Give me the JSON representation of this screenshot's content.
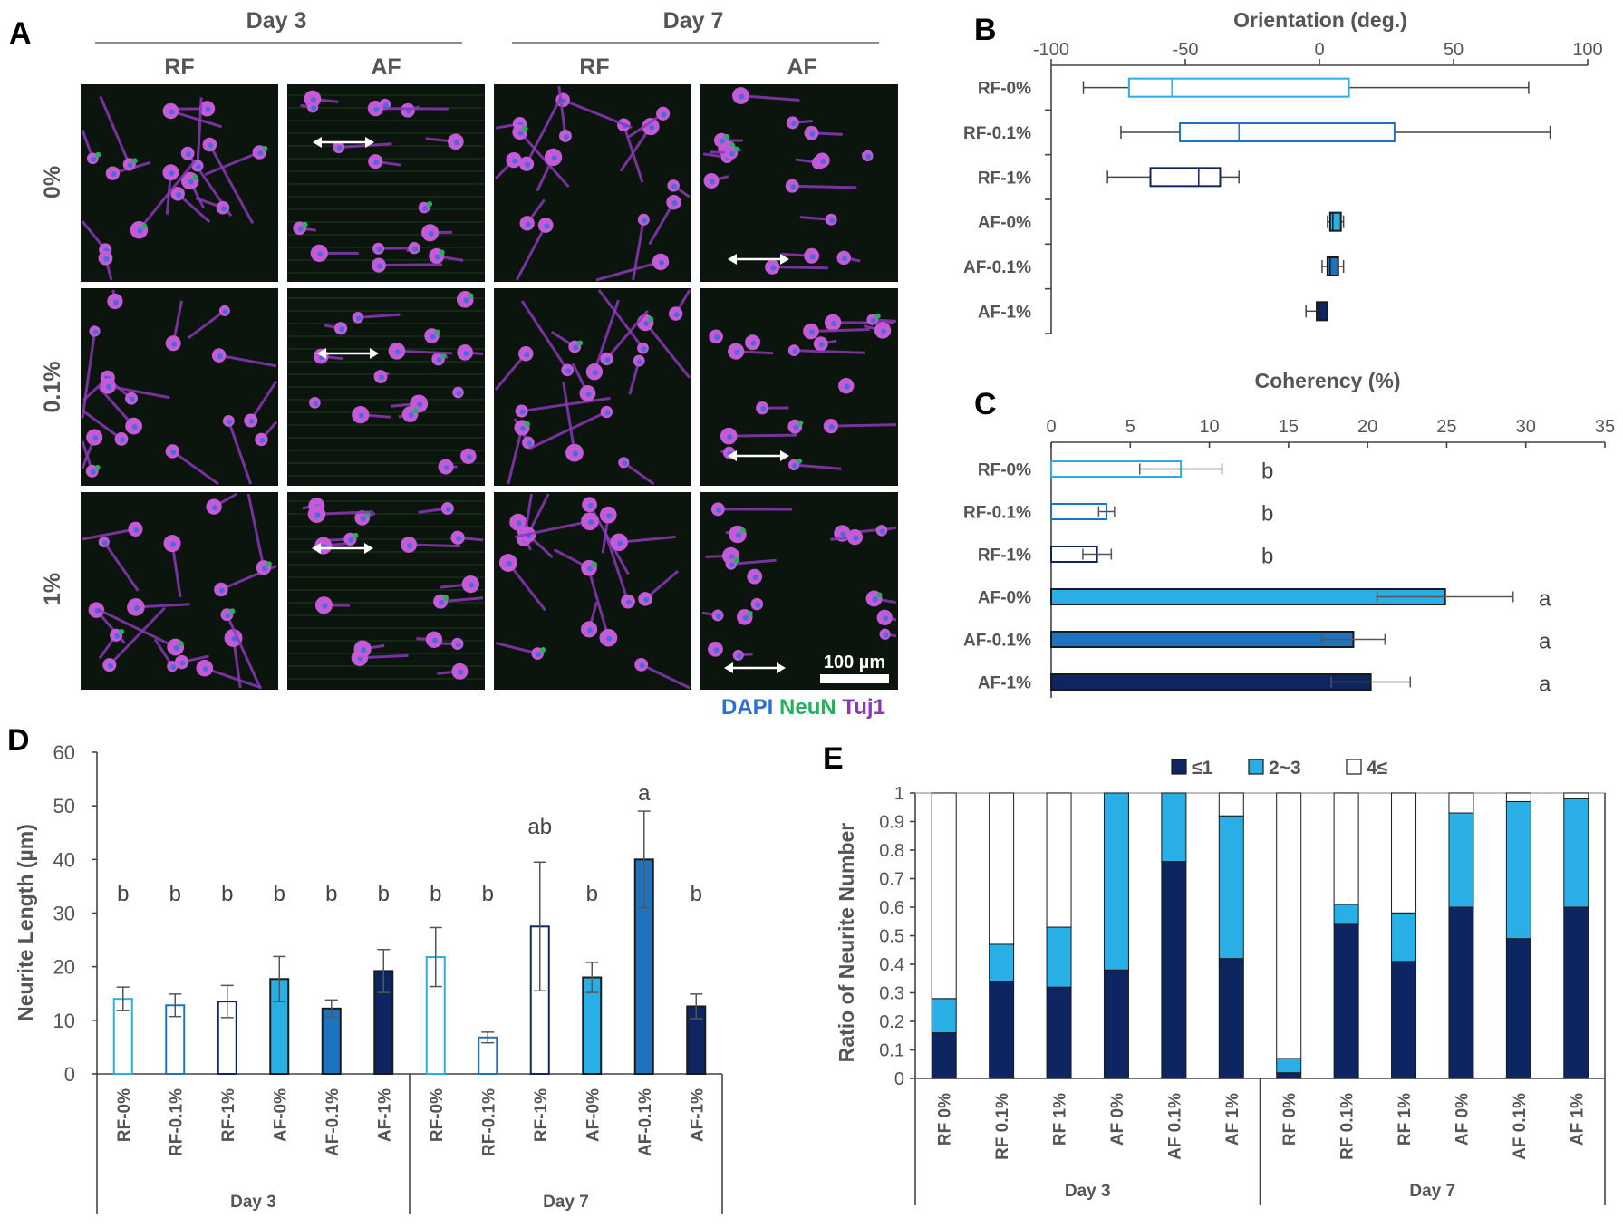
{
  "panel_labels": {
    "a": "A",
    "b": "B",
    "c": "C",
    "d": "D",
    "e": "E"
  },
  "panel_a": {
    "days": [
      "Day 3",
      "Day 7"
    ],
    "columns": [
      "RF",
      "AF",
      "RF",
      "AF"
    ],
    "rows": [
      "0%",
      "0.1%",
      "1%"
    ],
    "scale_bar": "100 µm",
    "stain_legend": {
      "dapi": "DAPI",
      "neun": "NeuN",
      "tuj1": "Tuj1"
    },
    "colors": {
      "dapi": "#2e6fd3",
      "neun": "#1fb25a",
      "tuj1": "#8a38b8",
      "bg": "#0b140d",
      "cell": "#c45ad8"
    }
  },
  "colors": {
    "light": "#29aee6",
    "mid": "#1e73be",
    "dark": "#0d2560",
    "text": "#555555"
  },
  "chart_data": [
    {
      "panel": "B",
      "type": "boxplot",
      "title": "Orientation (deg.)",
      "orientation": "horizontal",
      "xlim": [
        -100,
        100
      ],
      "xticks": [
        -100,
        -50,
        0,
        50,
        100
      ],
      "categories": [
        "RF-0%",
        "RF-0.1%",
        "RF-1%",
        "AF-0%",
        "AF-0.1%",
        "AF-1%"
      ],
      "min": [
        -88,
        -74,
        -79,
        3,
        1,
        -5
      ],
      "q1": [
        -71,
        -52,
        -63,
        4,
        3,
        -1
      ],
      "median": [
        -55,
        -30,
        -45,
        5,
        4,
        0
      ],
      "q3": [
        11,
        28,
        -37,
        8,
        7,
        3
      ],
      "max": [
        78,
        86,
        -30,
        9,
        9,
        3
      ],
      "fill": [
        false,
        false,
        false,
        true,
        true,
        true
      ]
    },
    {
      "panel": "C",
      "type": "bar",
      "orientation": "horizontal",
      "title": "Coherency (%)",
      "xlim": [
        0,
        35
      ],
      "xticks": [
        0,
        5,
        10,
        15,
        20,
        25,
        30,
        35
      ],
      "categories": [
        "RF-0%",
        "RF-0.1%",
        "RF-1%",
        "AF-0%",
        "AF-0.1%",
        "AF-1%"
      ],
      "values": [
        8.2,
        3.5,
        2.9,
        24.9,
        19.1,
        20.2
      ],
      "errors": [
        2.6,
        0.5,
        0.9,
        4.3,
        2.0,
        2.5
      ],
      "significance": [
        "b",
        "b",
        "b",
        "a",
        "a",
        "a"
      ],
      "fill": [
        false,
        false,
        false,
        true,
        true,
        true
      ]
    },
    {
      "panel": "D",
      "type": "bar",
      "ylabel": "Neurite Length (µm)",
      "ylim": [
        0,
        60
      ],
      "yticks": [
        0,
        10,
        20,
        30,
        40,
        50,
        60
      ],
      "categories": [
        "RF-0%",
        "RF-0.1%",
        "RF-1%",
        "AF-0%",
        "AF-0.1%",
        "AF-1%",
        "RF-0%",
        "RF-0.1%",
        "RF-1%",
        "AF-0%",
        "AF-0.1%",
        "AF-1%"
      ],
      "groups": [
        "Day 3",
        "Day 7"
      ],
      "values": [
        14.0,
        12.8,
        13.5,
        17.7,
        12.2,
        19.2,
        21.8,
        6.8,
        27.5,
        18.0,
        40.0,
        12.6
      ],
      "errors": [
        2.2,
        2.1,
        3.0,
        4.2,
        1.6,
        4.0,
        5.5,
        1.0,
        12.0,
        2.8,
        9.0,
        2.3
      ],
      "significance": [
        "b",
        "b",
        "b",
        "b",
        "b",
        "b",
        "b",
        "b",
        "ab",
        "b",
        "a",
        "b"
      ],
      "fill": [
        false,
        false,
        false,
        true,
        true,
        true,
        false,
        false,
        false,
        true,
        true,
        true
      ]
    },
    {
      "panel": "E",
      "type": "stacked-bar",
      "ylabel": "Ratio of Neurite Number",
      "ylim": [
        0,
        1
      ],
      "yticks": [
        "0",
        "0.1",
        "0.2",
        "0.3",
        "0.4",
        "0.5",
        "0.6",
        "0.7",
        "0.8",
        "0.9",
        "1"
      ],
      "categories": [
        "RF 0%",
        "RF 0.1%",
        "RF 1%",
        "AF 0%",
        "AF 0.1%",
        "AF 1%",
        "RF 0%",
        "RF 0.1%",
        "RF 1%",
        "AF 0%",
        "AF 0.1%",
        "AF 1%"
      ],
      "groups": [
        "Day 3",
        "Day 7"
      ],
      "legend": [
        "≤1",
        "2~3",
        "4≤"
      ],
      "series": [
        {
          "name": "≤1",
          "values": [
            0.16,
            0.34,
            0.32,
            0.38,
            0.76,
            0.42,
            0.02,
            0.54,
            0.41,
            0.6,
            0.49,
            0.6
          ]
        },
        {
          "name": "2~3",
          "values": [
            0.12,
            0.13,
            0.21,
            0.62,
            0.24,
            0.5,
            0.05,
            0.07,
            0.17,
            0.33,
            0.48,
            0.38
          ]
        },
        {
          "name": "4≤",
          "values": [
            0.72,
            0.53,
            0.47,
            0.0,
            0.0,
            0.08,
            0.93,
            0.39,
            0.42,
            0.07,
            0.03,
            0.02
          ]
        }
      ]
    }
  ]
}
